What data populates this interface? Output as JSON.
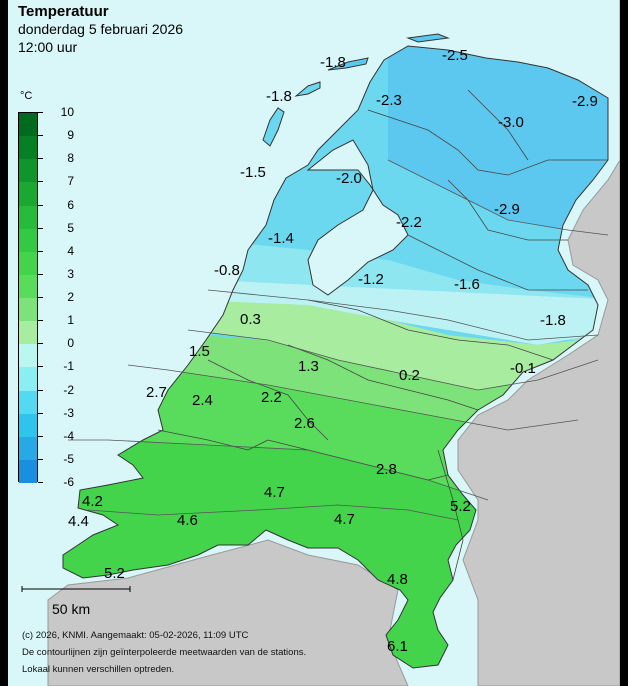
{
  "header": {
    "title": "Temperatuur",
    "subtitle": "donderdag 5 februari 2026",
    "time": "12:00 uur"
  },
  "legend": {
    "unit": "°C",
    "ticks": [
      "10",
      "9",
      "8",
      "7",
      "6",
      "5",
      "4",
      "3",
      "2",
      "1",
      "0",
      "-1",
      "-2",
      "-3",
      "-4",
      "-5",
      "-6"
    ],
    "colors": [
      "#006b1e",
      "#077f25",
      "#10942c",
      "#1aa833",
      "#27ba3b",
      "#34c944",
      "#43d44c",
      "#59dc5c",
      "#7ee27a",
      "#a8ec9f",
      "#baf7f1",
      "#8beef3",
      "#53d9f1",
      "#2fc4ec",
      "#27a9e6",
      "#1a8fe0"
    ]
  },
  "scale": {
    "label": "50 km"
  },
  "footer": {
    "line1": "(c) 2026, KNMI. Aangemaakt: 05-02-2026, 11:09 UTC",
    "line2": "De contourlijnen zijn geïnterpoleerde meetwaarden van de stations.",
    "line3": "Lokaal kunnen verschillen optreden."
  },
  "stations": [
    {
      "v": "-1.8"
    },
    {
      "v": "-2.5"
    },
    {
      "v": "-1.8"
    },
    {
      "v": "-2.3"
    },
    {
      "v": "-3.0"
    },
    {
      "v": "-2.9"
    },
    {
      "v": "-1.5"
    },
    {
      "v": "-2.0"
    },
    {
      "v": "-2.2"
    },
    {
      "v": "-2.9"
    },
    {
      "v": "-1.4"
    },
    {
      "v": "-0.8"
    },
    {
      "v": "-1.2"
    },
    {
      "v": "-1.6"
    },
    {
      "v": "-1.8"
    },
    {
      "v": "0.3"
    },
    {
      "v": "1.5"
    },
    {
      "v": "1.3"
    },
    {
      "v": "0.2"
    },
    {
      "v": "-0.1"
    },
    {
      "v": "2.7"
    },
    {
      "v": "2.4"
    },
    {
      "v": "2.2"
    },
    {
      "v": "2.6"
    },
    {
      "v": "2.8"
    },
    {
      "v": "4.2"
    },
    {
      "v": "4.7"
    },
    {
      "v": "5.2"
    },
    {
      "v": "4.4"
    },
    {
      "v": "4.6"
    },
    {
      "v": "4.7"
    },
    {
      "v": "5.2"
    },
    {
      "v": "4.8"
    },
    {
      "v": "6.1"
    }
  ],
  "colors": {
    "sea": "#d9f7f9",
    "land_outside": "#c8c8c8",
    "zone_cold": "#5cc8ef",
    "zone_cool": "#6cd8ef",
    "zone_mid": "#8ee6f0",
    "zone_light": "#bdf2f5",
    "zone_pale_green": "#a8ec9f",
    "zone_green1": "#7ee27a",
    "zone_green2": "#59dc5c",
    "zone_green3": "#43d44c"
  }
}
